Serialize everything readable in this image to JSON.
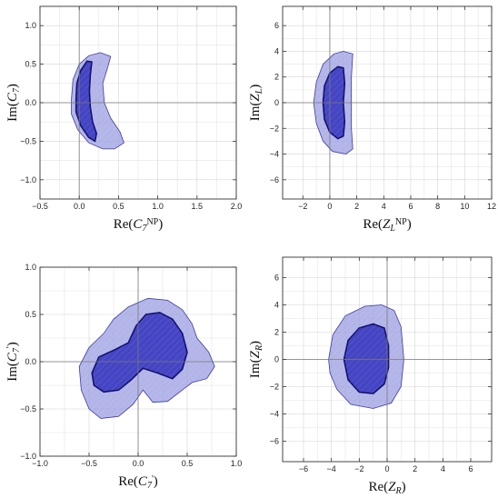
{
  "chart_data": [
    {
      "type": "contour",
      "xlabel": "Re(C7NP)",
      "ylabel": "Im(C7)",
      "xlim": [
        -0.5,
        2.0
      ],
      "ylim": [
        -1.25,
        1.25
      ],
      "xticks": [
        -0.5,
        0.0,
        0.5,
        1.0,
        1.5,
        2.0
      ],
      "yticks": [
        -1.0,
        -0.5,
        0.0,
        0.5,
        1.0
      ],
      "xtick_labels": [
        "−0.5",
        "0.0",
        "0.5",
        "1.0",
        "1.5",
        "2.0"
      ],
      "ytick_labels": [
        "−1.0",
        "−0.5",
        "0.0",
        "0.5",
        "1.0"
      ],
      "grid": true,
      "regions": [
        {
          "level": "outer",
          "points": [
            [
              -0.1,
              0.05
            ],
            [
              -0.08,
              0.3
            ],
            [
              0.0,
              0.5
            ],
            [
              0.12,
              0.61
            ],
            [
              0.27,
              0.65
            ],
            [
              0.4,
              0.6
            ],
            [
              0.36,
              0.45
            ],
            [
              0.3,
              0.25
            ],
            [
              0.32,
              0.0
            ],
            [
              0.4,
              -0.2
            ],
            [
              0.52,
              -0.38
            ],
            [
              0.57,
              -0.52
            ],
            [
              0.45,
              -0.6
            ],
            [
              0.3,
              -0.6
            ],
            [
              0.12,
              -0.52
            ],
            [
              -0.02,
              -0.35
            ],
            [
              -0.1,
              -0.15
            ]
          ]
        },
        {
          "level": "inner",
          "points": [
            [
              -0.04,
              0.05
            ],
            [
              -0.03,
              0.25
            ],
            [
              0.02,
              0.42
            ],
            [
              0.1,
              0.54
            ],
            [
              0.16,
              0.53
            ],
            [
              0.14,
              0.35
            ],
            [
              0.13,
              0.15
            ],
            [
              0.14,
              -0.05
            ],
            [
              0.17,
              -0.25
            ],
            [
              0.22,
              -0.4
            ],
            [
              0.2,
              -0.5
            ],
            [
              0.12,
              -0.45
            ],
            [
              0.02,
              -0.3
            ],
            [
              -0.04,
              -0.12
            ]
          ]
        }
      ]
    },
    {
      "type": "contour",
      "xlabel": "Re(ZLNP)",
      "ylabel": "Im(ZL)",
      "xlim": [
        -3.5,
        12.0
      ],
      "ylim": [
        -7.5,
        7.5
      ],
      "xticks": [
        -2,
        0,
        2,
        4,
        6,
        8,
        10,
        12
      ],
      "yticks": [
        -6,
        -4,
        -2,
        0,
        2,
        4,
        6
      ],
      "xtick_labels": [
        "−2",
        "0",
        "2",
        "4",
        "6",
        "8",
        "10",
        "12"
      ],
      "ytick_labels": [
        "−6",
        "−4",
        "−2",
        "0",
        "2",
        "4",
        "6"
      ],
      "grid": true,
      "regions": [
        {
          "level": "outer",
          "points": [
            [
              -1.2,
              0.0
            ],
            [
              -1.0,
              1.6
            ],
            [
              -0.5,
              3.0
            ],
            [
              0.3,
              3.8
            ],
            [
              1.0,
              4.0
            ],
            [
              1.7,
              3.8
            ],
            [
              1.6,
              2.0
            ],
            [
              1.6,
              0.0
            ],
            [
              1.6,
              -2.0
            ],
            [
              1.7,
              -3.6
            ],
            [
              1.2,
              -4.0
            ],
            [
              0.2,
              -3.8
            ],
            [
              -0.5,
              -3.0
            ],
            [
              -1.0,
              -1.6
            ]
          ]
        },
        {
          "level": "inner",
          "points": [
            [
              -0.5,
              0.0
            ],
            [
              -0.4,
              1.3
            ],
            [
              0.0,
              2.3
            ],
            [
              0.6,
              2.8
            ],
            [
              1.0,
              2.7
            ],
            [
              1.1,
              1.5
            ],
            [
              1.0,
              0.0
            ],
            [
              1.1,
              -1.5
            ],
            [
              1.0,
              -2.6
            ],
            [
              0.6,
              -2.8
            ],
            [
              0.0,
              -2.3
            ],
            [
              -0.4,
              -1.3
            ]
          ]
        }
      ]
    },
    {
      "type": "contour",
      "xlabel": "Re(C7')",
      "ylabel": "Im(C7')",
      "xlim": [
        -1.0,
        1.0
      ],
      "ylim": [
        -1.0,
        1.0
      ],
      "xticks": [
        -1.0,
        -0.5,
        0.0,
        0.5,
        1.0
      ],
      "yticks": [
        -1.0,
        -0.5,
        0.0,
        0.5,
        1.0
      ],
      "xtick_labels": [
        "−1.0",
        "−0.5",
        "0.0",
        "0.5",
        "1.0"
      ],
      "ytick_labels": [
        "−1.0",
        "−0.5",
        "0.0",
        "0.5",
        "1.0"
      ],
      "grid": true,
      "regions": [
        {
          "level": "outer",
          "points": [
            [
              -0.6,
              -0.05
            ],
            [
              -0.5,
              0.15
            ],
            [
              -0.35,
              0.3
            ],
            [
              -0.25,
              0.45
            ],
            [
              -0.1,
              0.58
            ],
            [
              0.1,
              0.67
            ],
            [
              0.3,
              0.65
            ],
            [
              0.45,
              0.55
            ],
            [
              0.55,
              0.4
            ],
            [
              0.6,
              0.25
            ],
            [
              0.72,
              0.1
            ],
            [
              0.78,
              -0.05
            ],
            [
              0.7,
              -0.18
            ],
            [
              0.55,
              -0.22
            ],
            [
              0.45,
              -0.3
            ],
            [
              0.3,
              -0.42
            ],
            [
              0.15,
              -0.43
            ],
            [
              0.05,
              -0.3
            ],
            [
              -0.05,
              -0.45
            ],
            [
              -0.2,
              -0.58
            ],
            [
              -0.38,
              -0.6
            ],
            [
              -0.5,
              -0.5
            ],
            [
              -0.58,
              -0.3
            ]
          ]
        },
        {
          "level": "inner",
          "points": [
            [
              -0.47,
              -0.12
            ],
            [
              -0.4,
              0.05
            ],
            [
              -0.25,
              0.12
            ],
            [
              -0.1,
              0.2
            ],
            [
              -0.02,
              0.38
            ],
            [
              0.08,
              0.5
            ],
            [
              0.22,
              0.52
            ],
            [
              0.35,
              0.45
            ],
            [
              0.45,
              0.3
            ],
            [
              0.5,
              0.1
            ],
            [
              0.45,
              -0.08
            ],
            [
              0.35,
              -0.18
            ],
            [
              0.2,
              -0.12
            ],
            [
              0.05,
              -0.07
            ],
            [
              -0.08,
              -0.2
            ],
            [
              -0.2,
              -0.3
            ],
            [
              -0.35,
              -0.32
            ],
            [
              -0.45,
              -0.25
            ]
          ]
        }
      ]
    },
    {
      "type": "contour",
      "xlabel": "Re(ZR)",
      "ylabel": "Im(ZR)",
      "xlim": [
        -7.5,
        7.5
      ],
      "ylim": [
        -7.5,
        7.5
      ],
      "xticks": [
        -6,
        -4,
        -2,
        0,
        2,
        4,
        6
      ],
      "yticks": [
        -6,
        -4,
        -2,
        0,
        2,
        4,
        6
      ],
      "xtick_labels": [
        "−6",
        "−4",
        "−2",
        "0",
        "2",
        "4",
        "6"
      ],
      "ytick_labels": [
        "−6",
        "−4",
        "−2",
        "0",
        "2",
        "4",
        "6"
      ],
      "grid": true,
      "regions": [
        {
          "level": "outer",
          "points": [
            [
              -4.2,
              0.0
            ],
            [
              -3.9,
              1.8
            ],
            [
              -3.0,
              3.2
            ],
            [
              -1.6,
              3.9
            ],
            [
              -0.4,
              4.0
            ],
            [
              0.5,
              3.6
            ],
            [
              1.0,
              2.4
            ],
            [
              1.2,
              0.0
            ],
            [
              1.0,
              -2.0
            ],
            [
              0.3,
              -3.2
            ],
            [
              -1.0,
              -3.6
            ],
            [
              -2.6,
              -3.3
            ],
            [
              -3.6,
              -2.2
            ],
            [
              -4.1,
              -1.0
            ]
          ]
        },
        {
          "level": "inner",
          "points": [
            [
              -3.1,
              0.0
            ],
            [
              -2.8,
              1.4
            ],
            [
              -2.0,
              2.3
            ],
            [
              -1.0,
              2.6
            ],
            [
              -0.2,
              2.3
            ],
            [
              0.1,
              1.0
            ],
            [
              0.1,
              -0.6
            ],
            [
              -0.2,
              -1.8
            ],
            [
              -1.0,
              -2.5
            ],
            [
              -2.0,
              -2.4
            ],
            [
              -2.8,
              -1.5
            ]
          ]
        }
      ]
    }
  ]
}
